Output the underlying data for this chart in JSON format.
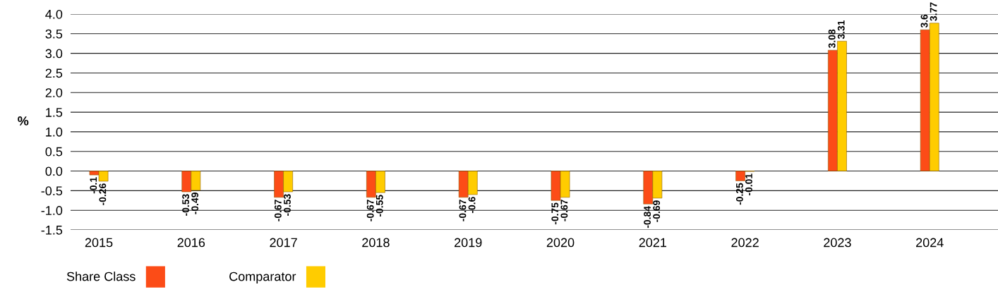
{
  "chart_data": {
    "type": "bar",
    "ylabel": "%",
    "categories": [
      "2015",
      "2016",
      "2017",
      "2018",
      "2019",
      "2020",
      "2021",
      "2022",
      "2023",
      "2024"
    ],
    "series": [
      {
        "name": "Share Class",
        "color": "#fc4c17",
        "values": [
          -0.1,
          -0.53,
          -0.67,
          -0.67,
          -0.67,
          -0.75,
          -0.84,
          -0.25,
          3.08,
          3.6
        ]
      },
      {
        "name": "Comparator",
        "color": "#ffcc00",
        "values": [
          -0.26,
          -0.49,
          -0.53,
          -0.55,
          -0.6,
          -0.67,
          -0.69,
          -0.01,
          3.31,
          3.77
        ]
      }
    ],
    "ylim": [
      -1.5,
      4.0
    ],
    "yticks": [
      {
        "value": -1.5,
        "label": "-1.5"
      },
      {
        "value": -1.0,
        "label": "-1.0"
      },
      {
        "value": -0.5,
        "label": "-0.5"
      },
      {
        "value": 0,
        "label": "0.0"
      },
      {
        "value": 0.5,
        "label": "0.5"
      },
      {
        "value": 1.0,
        "label": "1.0"
      },
      {
        "value": 1.5,
        "label": "1.5"
      },
      {
        "value": 2.0,
        "label": "2.0"
      },
      {
        "value": 2.5,
        "label": "2.5"
      },
      {
        "value": 3.0,
        "label": "3.0"
      },
      {
        "value": 3.5,
        "label": "3.5"
      },
      {
        "value": 4.0,
        "label": "4.0"
      }
    ],
    "grid": "y",
    "legend": "bottom left",
    "data_labels": true
  }
}
